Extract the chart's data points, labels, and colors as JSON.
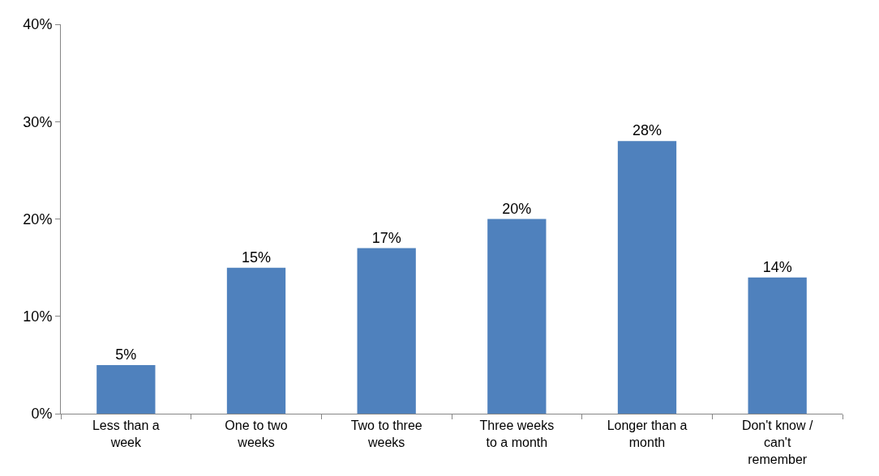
{
  "chart_data": {
    "type": "bar",
    "categories": [
      "Less than a week",
      "One to two weeks",
      "Two to three weeks",
      "Three weeks to a month",
      "Longer than a month",
      "Don't know / can't remember"
    ],
    "values": [
      5,
      15,
      17,
      20,
      28,
      14
    ],
    "value_labels": [
      "5%",
      "15%",
      "17%",
      "20%",
      "28%",
      "14%"
    ],
    "color": "#4f81bd",
    "ylim": [
      0,
      40
    ],
    "yticks": [
      {
        "value": 0,
        "label": "0%"
      },
      {
        "value": 10,
        "label": "10%"
      },
      {
        "value": 20,
        "label": "20%"
      },
      {
        "value": 30,
        "label": "30%"
      },
      {
        "value": 40,
        "label": "40%"
      }
    ],
    "grid": false,
    "legend": false
  }
}
